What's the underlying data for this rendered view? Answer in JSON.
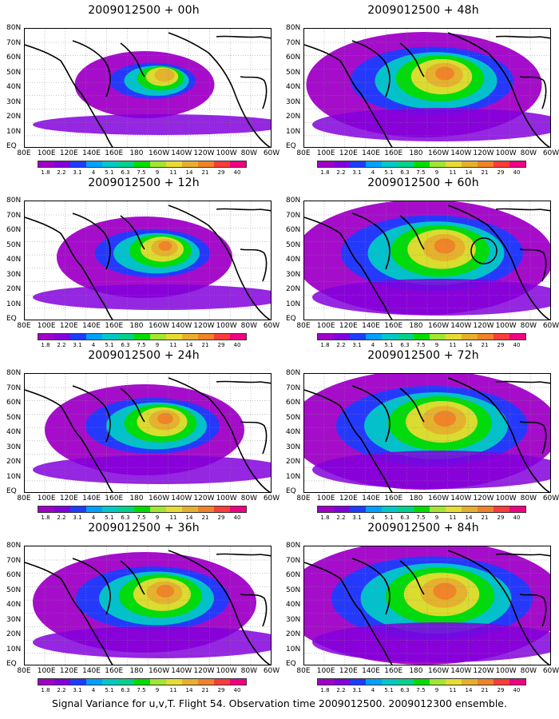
{
  "panels": [
    {
      "id": "p00",
      "title": "2009012500 + 00h",
      "intensity": 0.55,
      "spread": 0.45,
      "circle": false
    },
    {
      "id": "p48",
      "title": "2009012500 + 48h",
      "intensity": 0.7,
      "spread": 0.85,
      "circle": false
    },
    {
      "id": "p12",
      "title": "2009012500 + 12h",
      "intensity": 0.6,
      "spread": 0.6,
      "circle": false
    },
    {
      "id": "p60",
      "title": "2009012500 + 60h",
      "intensity": 0.75,
      "spread": 0.95,
      "circle": true
    },
    {
      "id": "p24",
      "title": "2009012500 + 24h",
      "intensity": 0.62,
      "spread": 0.7,
      "circle": false
    },
    {
      "id": "p72",
      "title": "2009012500 + 72h",
      "intensity": 0.78,
      "spread": 1.0,
      "circle": false
    },
    {
      "id": "p36",
      "title": "2009012500 + 36h",
      "intensity": 0.68,
      "spread": 0.8,
      "circle": false
    },
    {
      "id": "p84",
      "title": "2009012500 + 84h",
      "intensity": 0.8,
      "spread": 1.05,
      "circle": false
    }
  ],
  "lat_labels": [
    "80N",
    "70N",
    "60N",
    "50N",
    "40N",
    "30N",
    "20N",
    "10N",
    "EQ"
  ],
  "lon_labels": [
    "80E",
    "100E",
    "120E",
    "140E",
    "160E",
    "180",
    "160W",
    "140W",
    "120W",
    "100W",
    "80W",
    "60W"
  ],
  "colorbar": {
    "labels": [
      "1.8",
      "2.2",
      "3.1",
      "4",
      "5.1",
      "6.3",
      "7.5",
      "9",
      "11",
      "14",
      "21",
      "29",
      "40"
    ],
    "colors": [
      "#a000c8",
      "#8200dc",
      "#1e3cff",
      "#00a0ff",
      "#00c8c8",
      "#00d28c",
      "#00dc00",
      "#a0e632",
      "#e6dc32",
      "#e6af2d",
      "#f08228",
      "#fa3c3c",
      "#f00082"
    ]
  },
  "caption": "Signal Variance for u,v,T. Flight 54. Observation time 2009012500. 2009012300 ensemble."
}
